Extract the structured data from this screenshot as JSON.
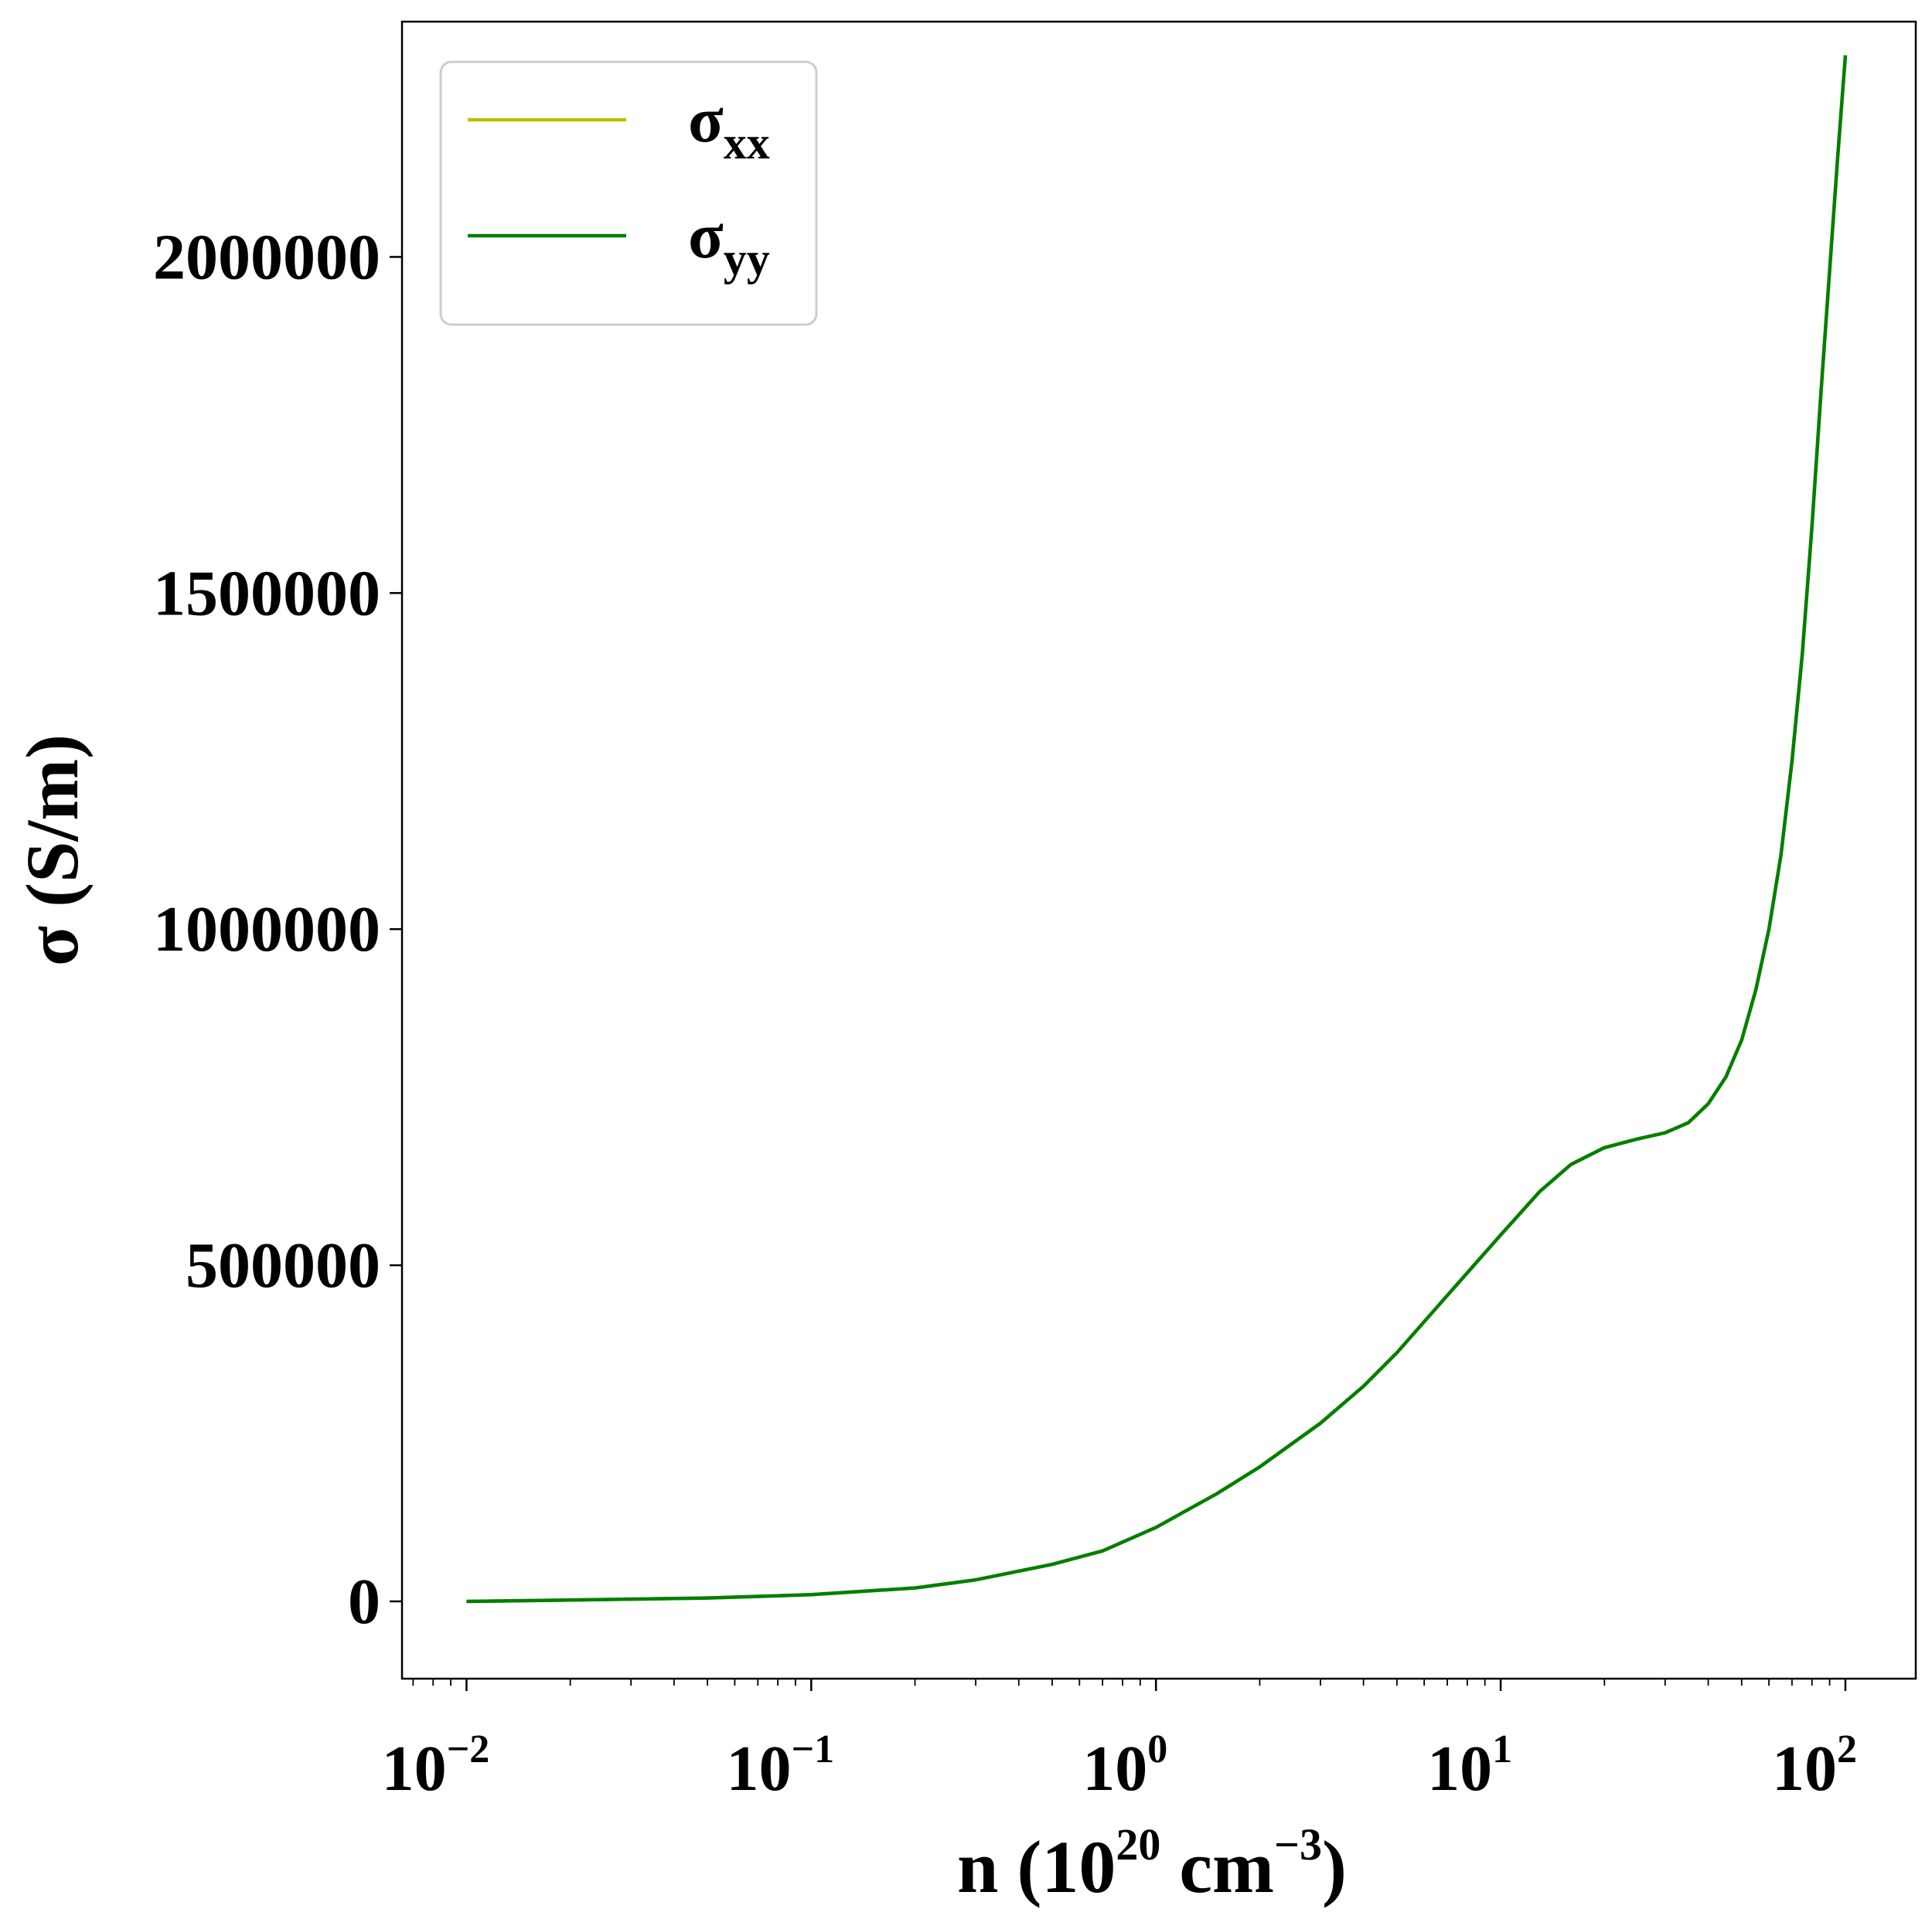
{
  "chart_data": {
    "type": "line",
    "x_scale": "log",
    "xlim": [
      0.0065,
      160
    ],
    "ylim": [
      -115000,
      2350000
    ],
    "xlabel": {
      "prefix": "n (10",
      "exp1": "20",
      "mid": " cm",
      "exp2": "−3",
      "suffix": ")"
    },
    "ylabel": "σ (S/m)",
    "xticks": [
      {
        "value": 0.01,
        "base": "10",
        "exp": "−2"
      },
      {
        "value": 0.1,
        "base": "10",
        "exp": "−1"
      },
      {
        "value": 1,
        "base": "10",
        "exp": "0"
      },
      {
        "value": 10,
        "base": "10",
        "exp": "1"
      },
      {
        "value": 100,
        "base": "10",
        "exp": "2"
      }
    ],
    "yticks": [
      {
        "value": 0,
        "label": "0"
      },
      {
        "value": 500000,
        "label": "500000"
      },
      {
        "value": 1000000,
        "label": "1000000"
      },
      {
        "value": 1500000,
        "label": "1500000"
      },
      {
        "value": 2000000,
        "label": "2000000"
      }
    ],
    "grid": false,
    "legend": {
      "position": "top-left"
    },
    "series": [
      {
        "name": "σxx",
        "name_main": "σ",
        "name_sub": "xx",
        "color": "#bfbf00",
        "x": [
          0.01,
          0.02,
          0.05,
          0.1,
          0.2,
          0.3,
          0.5,
          0.7,
          1,
          1.5,
          2,
          3,
          4,
          5,
          7,
          10,
          13,
          16,
          20,
          25,
          30,
          35,
          40,
          45,
          50,
          55,
          60,
          65,
          70,
          75,
          80,
          85,
          90,
          95,
          100
        ],
        "y": [
          0,
          2000,
          5000,
          10000,
          20000,
          32000,
          55000,
          75000,
          110000,
          160000,
          200000,
          265000,
          320000,
          370000,
          455000,
          545000,
          610000,
          650000,
          675000,
          688000,
          697000,
          712000,
          740000,
          780000,
          835000,
          910000,
          1000000,
          1110000,
          1250000,
          1410000,
          1600000,
          1800000,
          1980000,
          2150000,
          2300000
        ]
      },
      {
        "name": "σyy",
        "name_main": "σ",
        "name_sub": "yy",
        "color": "#007f00",
        "x": [
          0.01,
          0.02,
          0.05,
          0.1,
          0.2,
          0.3,
          0.5,
          0.7,
          1,
          1.5,
          2,
          3,
          4,
          5,
          7,
          10,
          13,
          16,
          20,
          25,
          30,
          35,
          40,
          45,
          50,
          55,
          60,
          65,
          70,
          75,
          80,
          85,
          90,
          95,
          100
        ],
        "y": [
          0,
          2000,
          5000,
          10000,
          20000,
          32000,
          55000,
          75000,
          110000,
          160000,
          200000,
          265000,
          320000,
          370000,
          455000,
          545000,
          610000,
          650000,
          675000,
          688000,
          697000,
          712000,
          740000,
          780000,
          835000,
          910000,
          1000000,
          1110000,
          1250000,
          1410000,
          1600000,
          1800000,
          1980000,
          2150000,
          2300000
        ]
      }
    ]
  }
}
